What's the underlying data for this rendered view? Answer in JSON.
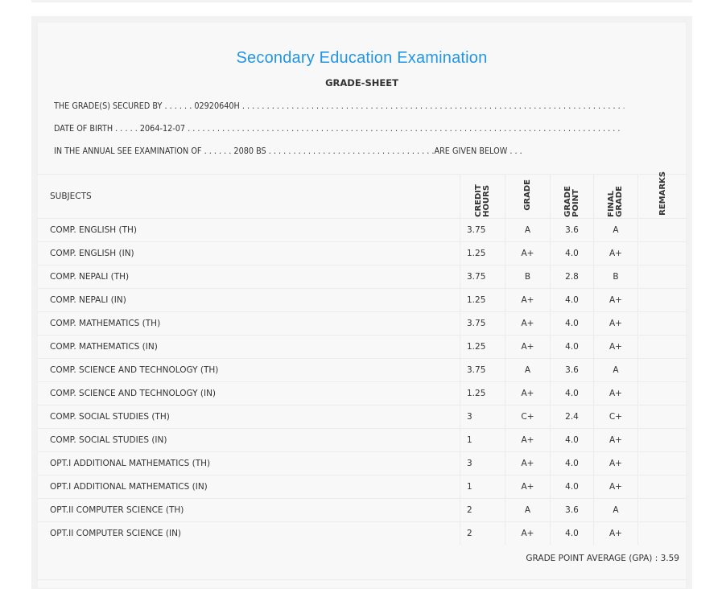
{
  "title": "Secondary Education Examination",
  "subtitle": "GRADE-SHEET",
  "info": {
    "secured_by_label": "THE GRADE(S) SECURED BY",
    "secured_by_value": "02920640H",
    "dob_label": "DATE OF BIRTH",
    "dob_value": "2064-12-07",
    "exam_label": "IN THE ANNUAL SEE EXAMINATION OF",
    "exam_value": "2080 BS",
    "exam_suffix": "ARE GIVEN BELOW . . .",
    "dots_short6": ". . . . . .",
    "dots_short5": ". . . . .",
    "dots_long1": ". . . . . . . . . . . . . . . . . . . . . . . . . . . . . . . . . . . . . . . . . . . . . . . . . . . . . . . . . . . . . . . . . . . . . . . . . . . . . . . .",
    "dots_long2": ". . . . . . . . . . . . . . . . . . . . . . . . . . . . . . . . . . . . . . . . . . . . . . . . . . . . . . . . . . . . . . . . . . . . . . . . . . . . . . . . . . . . . . . .",
    "dots_long3": ". . . . . . . . . . . . . . . . . . . . . . . . . . . . . . . . . ."
  },
  "table": {
    "headers": [
      "SUBJECTS",
      "CREDIT HOURS",
      "GRADE",
      "GRADE POINT",
      "FINAL GRADE",
      "REMARKS"
    ],
    "rows": [
      [
        "COMP. ENGLISH (TH)",
        "3.75",
        "A",
        "3.6",
        "A"
      ],
      [
        "COMP. ENGLISH (IN)",
        "1.25",
        "A+",
        "4.0",
        "A+"
      ],
      [
        "COMP. NEPALI (TH)",
        "3.75",
        "B",
        "2.8",
        "B"
      ],
      [
        "COMP. NEPALI (IN)",
        "1.25",
        "A+",
        "4.0",
        "A+"
      ],
      [
        "COMP. MATHEMATICS (TH)",
        "3.75",
        "A+",
        "4.0",
        "A+"
      ],
      [
        "COMP. MATHEMATICS (IN)",
        "1.25",
        "A+",
        "4.0",
        "A+"
      ],
      [
        "COMP. SCIENCE AND TECHNOLOGY (TH)",
        "3.75",
        "A",
        "3.6",
        "A"
      ],
      [
        "COMP. SCIENCE AND TECHNOLOGY (IN)",
        "1.25",
        "A+",
        "4.0",
        "A+"
      ],
      [
        "COMP. SOCIAL STUDIES (TH)",
        "3",
        "C+",
        "2.4",
        "C+"
      ],
      [
        "COMP. SOCIAL STUDIES (IN)",
        "1",
        "A+",
        "4.0",
        "A+"
      ],
      [
        "OPT.I ADDITIONAL MATHEMATICS (TH)",
        "3",
        "A+",
        "4.0",
        "A+"
      ],
      [
        "OPT.I ADDITIONAL MATHEMATICS (IN)",
        "1",
        "A+",
        "4.0",
        "A+"
      ],
      [
        "OPT.II COMPUTER SCIENCE (TH)",
        "2",
        "A",
        "3.6",
        "A"
      ],
      [
        "OPT.II COMPUTER SCIENCE (IN)",
        "2",
        "A+",
        "4.0",
        "A+"
      ]
    ]
  },
  "gpa": "GRADE POINT AVERAGE (GPA) : 3.59",
  "colors": {
    "title": "#2196e6",
    "text": "#333333",
    "panel": "#f8f8f8"
  }
}
